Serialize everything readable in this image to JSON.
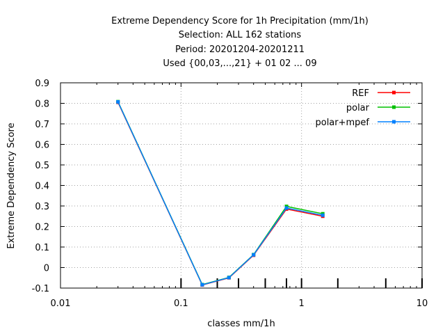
{
  "chart_data": {
    "type": "line",
    "title_lines": [
      "Extreme Dependency Score  for 1h Precipitation (mm/1h)",
      "Selection: ALL    162 stations",
      "Period: 20201204-20201211",
      "Used {00,03,...,21} + 01 02 ... 09"
    ],
    "xlabel": "classes mm/1h",
    "ylabel": "Extreme Dependency Score",
    "x_scale": "log",
    "xlim": [
      0.01,
      10
    ],
    "ylim": [
      -0.1,
      0.9
    ],
    "x_ticks": [
      0.01,
      0.1,
      1,
      10
    ],
    "x_tick_labels": [
      "0.01",
      "0.1",
      "1",
      "10"
    ],
    "x_class_marks": [
      0.1,
      0.2,
      0.3,
      0.5,
      0.75,
      1,
      2,
      5,
      10
    ],
    "y_ticks": [
      -0.1,
      0,
      0.1,
      0.2,
      0.3,
      0.4,
      0.5,
      0.6,
      0.7,
      0.8,
      0.9
    ],
    "y_tick_labels": [
      "-0.1",
      "0",
      "0.1",
      "0.2",
      "0.3",
      "0.4",
      "0.5",
      "0.6",
      "0.7",
      "0.8",
      "0.9"
    ],
    "grid": true,
    "legend_position": "top-right",
    "x": [
      0.03,
      0.15,
      0.25,
      0.4,
      0.75,
      1.5
    ],
    "series": [
      {
        "name": "REF",
        "color": "#ff0000",
        "values": [
          0.805,
          -0.085,
          -0.05,
          0.06,
          0.285,
          0.25
        ]
      },
      {
        "name": "polar",
        "color": "#00c000",
        "values": [
          0.808,
          -0.083,
          -0.048,
          0.063,
          0.298,
          0.262
        ]
      },
      {
        "name": "polar+mpef",
        "color": "#0080ff",
        "values": [
          0.807,
          -0.084,
          -0.049,
          0.062,
          0.29,
          0.255
        ]
      }
    ]
  }
}
